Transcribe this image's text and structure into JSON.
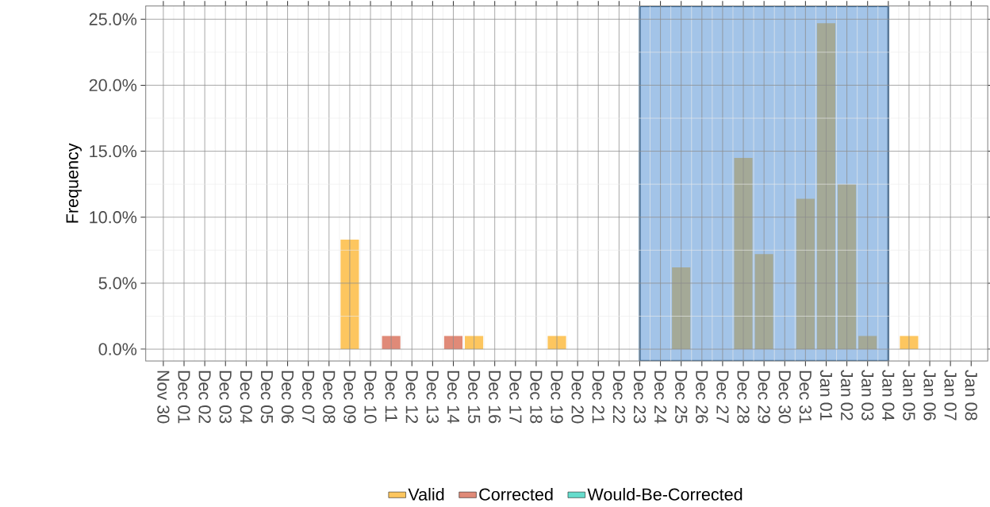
{
  "chart_data": {
    "type": "bar",
    "ylabel": "Frequency",
    "categories": [
      "Nov 30",
      "Dec 01",
      "Dec 02",
      "Dec 03",
      "Dec 04",
      "Dec 05",
      "Dec 06",
      "Dec 07",
      "Dec 08",
      "Dec 09",
      "Dec 10",
      "Dec 11",
      "Dec 12",
      "Dec 13",
      "Dec 14",
      "Dec 15",
      "Dec 16",
      "Dec 17",
      "Dec 18",
      "Dec 19",
      "Dec 20",
      "Dec 21",
      "Dec 22",
      "Dec 23",
      "Dec 24",
      "Dec 25",
      "Dec 26",
      "Dec 27",
      "Dec 28",
      "Dec 29",
      "Dec 30",
      "Dec 31",
      "Jan 01",
      "Jan 02",
      "Jan 03",
      "Jan 04",
      "Jan 05",
      "Jan 06",
      "Jan 07",
      "Jan 08"
    ],
    "series": [
      {
        "name": "Valid",
        "color": "#fdc65f",
        "values": [
          null,
          null,
          null,
          null,
          null,
          null,
          null,
          null,
          null,
          8.3,
          null,
          null,
          null,
          null,
          null,
          1.0,
          null,
          null,
          null,
          1.0,
          null,
          null,
          null,
          null,
          null,
          6.2,
          null,
          null,
          14.5,
          7.2,
          null,
          11.4,
          24.7,
          12.5,
          1.0,
          null,
          1.0,
          null,
          null,
          null
        ],
        "colors": [
          "#fdc65f",
          "#fdc65f",
          "#fdc65f",
          "#fdc65f",
          "#fdc65f",
          "#fdc65f",
          "#fdc65f",
          "#fdc65f",
          "#fdc65f",
          "#fdc65f",
          "#fdc65f",
          "#fdc65f",
          "#fdc65f",
          "#fdc65f",
          "#fdc65f",
          "#fdc65f",
          "#fdc65f",
          "#fdc65f",
          "#fdc65f",
          "#fdc65f",
          "#fdc65f",
          "#fdc65f",
          "#fdc65f",
          "#fdc65f",
          "#a4a997",
          "#a4a997",
          "#a4a997",
          "#a4a997",
          "#a4a997",
          "#a4a997",
          "#a4a997",
          "#a4a997",
          "#a4a997",
          "#a4a997",
          "#a4a997",
          "#a4a997",
          "#fdc65f",
          "#fdc65f",
          "#fdc65f",
          "#fdc65f"
        ]
      },
      {
        "name": "Corrected",
        "color": "#e08a78",
        "values": [
          null,
          null,
          null,
          null,
          null,
          null,
          null,
          null,
          null,
          null,
          null,
          1.0,
          null,
          null,
          1.0,
          null,
          null,
          null,
          null,
          null,
          null,
          null,
          null,
          null,
          null,
          null,
          null,
          null,
          null,
          null,
          null,
          null,
          null,
          null,
          null,
          null,
          null,
          null,
          null,
          null
        ]
      },
      {
        "name": "Would-Be-Corrected",
        "color": "#66dccc",
        "values": [
          null,
          null,
          null,
          null,
          null,
          null,
          null,
          null,
          null,
          null,
          null,
          null,
          null,
          null,
          null,
          null,
          null,
          null,
          null,
          null,
          null,
          null,
          null,
          null,
          null,
          null,
          null,
          null,
          null,
          null,
          null,
          null,
          null,
          null,
          null,
          null,
          null,
          null,
          null,
          null
        ]
      }
    ],
    "ylim": [
      -0.9,
      26.0
    ],
    "yticks": [
      {
        "value": 0,
        "label": "0.0%"
      },
      {
        "value": 5,
        "label": "5.0%"
      },
      {
        "value": 10,
        "label": "10.0%"
      },
      {
        "value": 15,
        "label": "15.0%"
      },
      {
        "value": 20,
        "label": "20.0%"
      },
      {
        "value": 25,
        "label": "25.0%"
      }
    ],
    "bands": [
      {
        "axis": "x",
        "from": "Dec 23",
        "to": "Jan 04",
        "color": "#a3c4e8"
      }
    ],
    "grid": true,
    "legend": "bottom"
  }
}
